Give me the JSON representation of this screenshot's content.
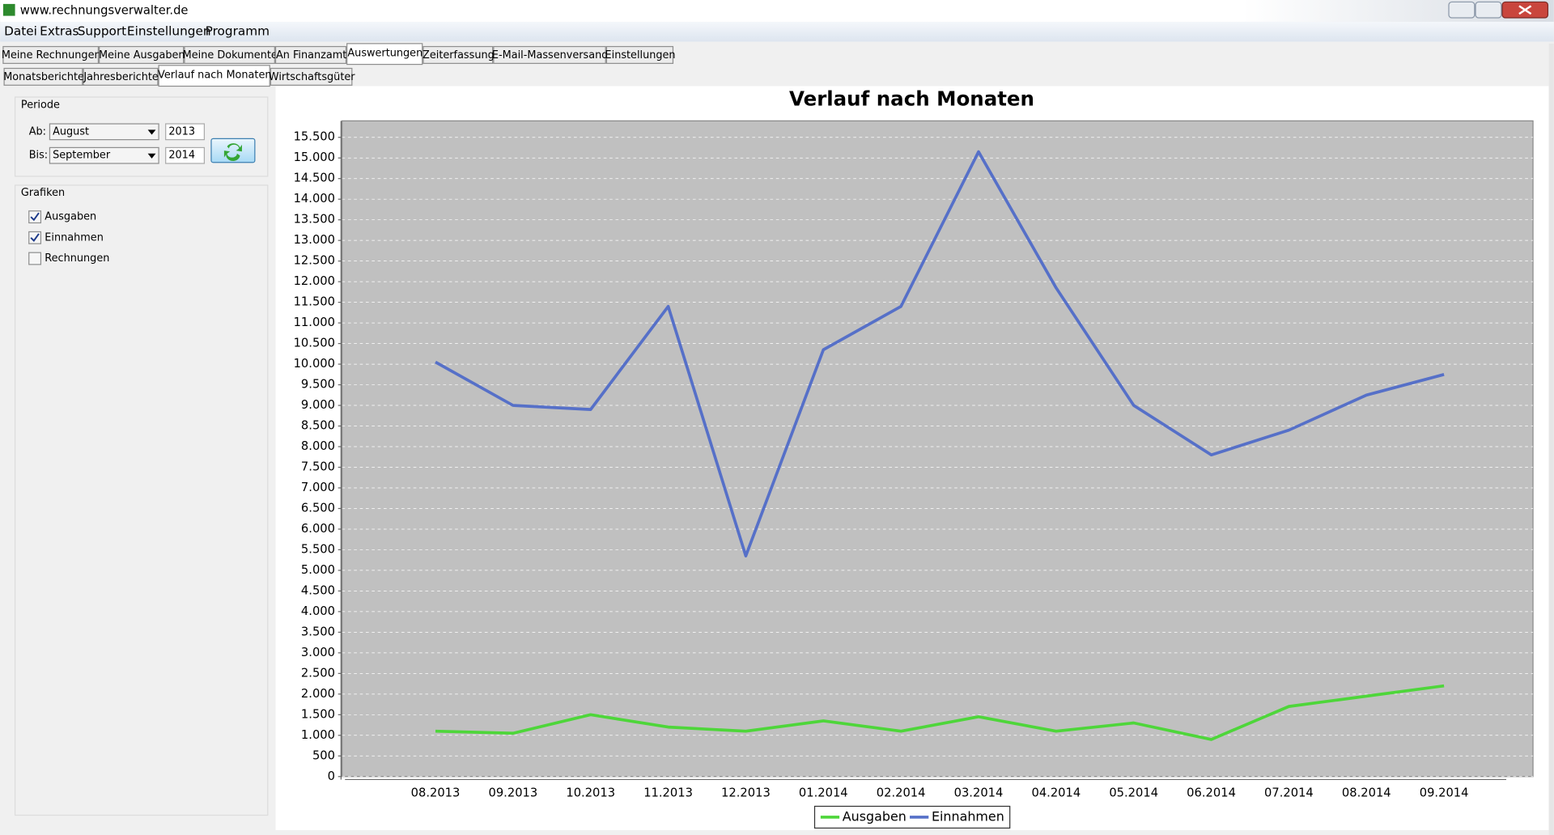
{
  "window": {
    "title": "www.rechnungsverwalter.de"
  },
  "menu": [
    "Datei",
    "Extras",
    "Support",
    "Einstellungen",
    "Programm"
  ],
  "tabs": [
    "Meine Rechnungen",
    "Meine Ausgaben",
    "Meine Dokumente",
    "An Finanzamt",
    "Auswertungen",
    "Zeiterfassung",
    "E-Mail-Massenversand",
    "Einstellungen"
  ],
  "subtabs": [
    "Monatsberichte",
    "Jahresberichte",
    "Verlauf nach Monaten",
    "Wirtschaftsgüter"
  ],
  "periode": {
    "title": "Periode",
    "from_label": "Ab:",
    "from_month": "August",
    "from_year": "2013",
    "to_label": "Bis:",
    "to_month": "September",
    "to_year": "2014"
  },
  "grafiken": {
    "title": "Grafiken",
    "options": [
      {
        "label": "Ausgaben",
        "checked": true
      },
      {
        "label": "Einnahmen",
        "checked": true
      },
      {
        "label": "Rechnungen",
        "checked": false
      }
    ]
  },
  "chart_data": {
    "type": "line",
    "title": "Verlauf nach Monaten",
    "categories": [
      "08.2013",
      "09.2013",
      "10.2013",
      "11.2013",
      "12.2013",
      "01.2014",
      "02.2014",
      "03.2014",
      "04.2014",
      "05.2014",
      "06.2014",
      "07.2014",
      "08.2014",
      "09.2014"
    ],
    "series": [
      {
        "name": "Ausgaben",
        "color": "#4ed63a",
        "values": [
          1100,
          1050,
          1500,
          1200,
          1100,
          1350,
          1100,
          1450,
          1100,
          1300,
          900,
          1700,
          1950,
          2200
        ]
      },
      {
        "name": "Einnahmen",
        "color": "#5670c8",
        "values": [
          10050,
          9000,
          8900,
          11400,
          5350,
          10350,
          11400,
          15150,
          11850,
          9000,
          7800,
          8400,
          9250,
          9750
        ]
      }
    ],
    "ylim": [
      0,
      15900
    ],
    "yticks": [
      0,
      500,
      {
        "value": 1000,
        "label": "1.000"
      },
      {
        "value": 1500,
        "label": "1.500"
      },
      {
        "value": 2000,
        "label": "2.000"
      },
      {
        "value": 2500,
        "label": "2.500"
      },
      {
        "value": 3000,
        "label": "3.000"
      },
      {
        "value": 3500,
        "label": "3.500"
      },
      {
        "value": 4000,
        "label": "4.000"
      },
      {
        "value": 4500,
        "label": "4.500"
      },
      {
        "value": 5000,
        "label": "5.000"
      },
      {
        "value": 5500,
        "label": "5.500"
      },
      {
        "value": 6000,
        "label": "6.000"
      },
      {
        "value": 6500,
        "label": "6.500"
      },
      {
        "value": 7000,
        "label": "7.000"
      },
      {
        "value": 7500,
        "label": "7.500"
      },
      {
        "value": 8000,
        "label": "8.000"
      },
      {
        "value": 8500,
        "label": "8.500"
      },
      {
        "value": 9000,
        "label": "9.000"
      },
      {
        "value": 9500,
        "label": "9.500"
      },
      {
        "value": 10000,
        "label": "10.000"
      },
      {
        "value": 10500,
        "label": "10.500"
      },
      {
        "value": 11000,
        "label": "11.000"
      },
      {
        "value": 11500,
        "label": "11.500"
      },
      {
        "value": 12000,
        "label": "12.000"
      },
      {
        "value": 12500,
        "label": "12.500"
      },
      {
        "value": 13000,
        "label": "13.000"
      },
      {
        "value": 13500,
        "label": "13.500"
      },
      {
        "value": 14000,
        "label": "14.000"
      },
      {
        "value": 14500,
        "label": "14.500"
      },
      {
        "value": 15000,
        "label": "15.000"
      },
      {
        "value": 15500,
        "label": "15.500"
      }
    ],
    "grid": true,
    "legend": "bottom",
    "plot_background": "#c0c0c0"
  }
}
